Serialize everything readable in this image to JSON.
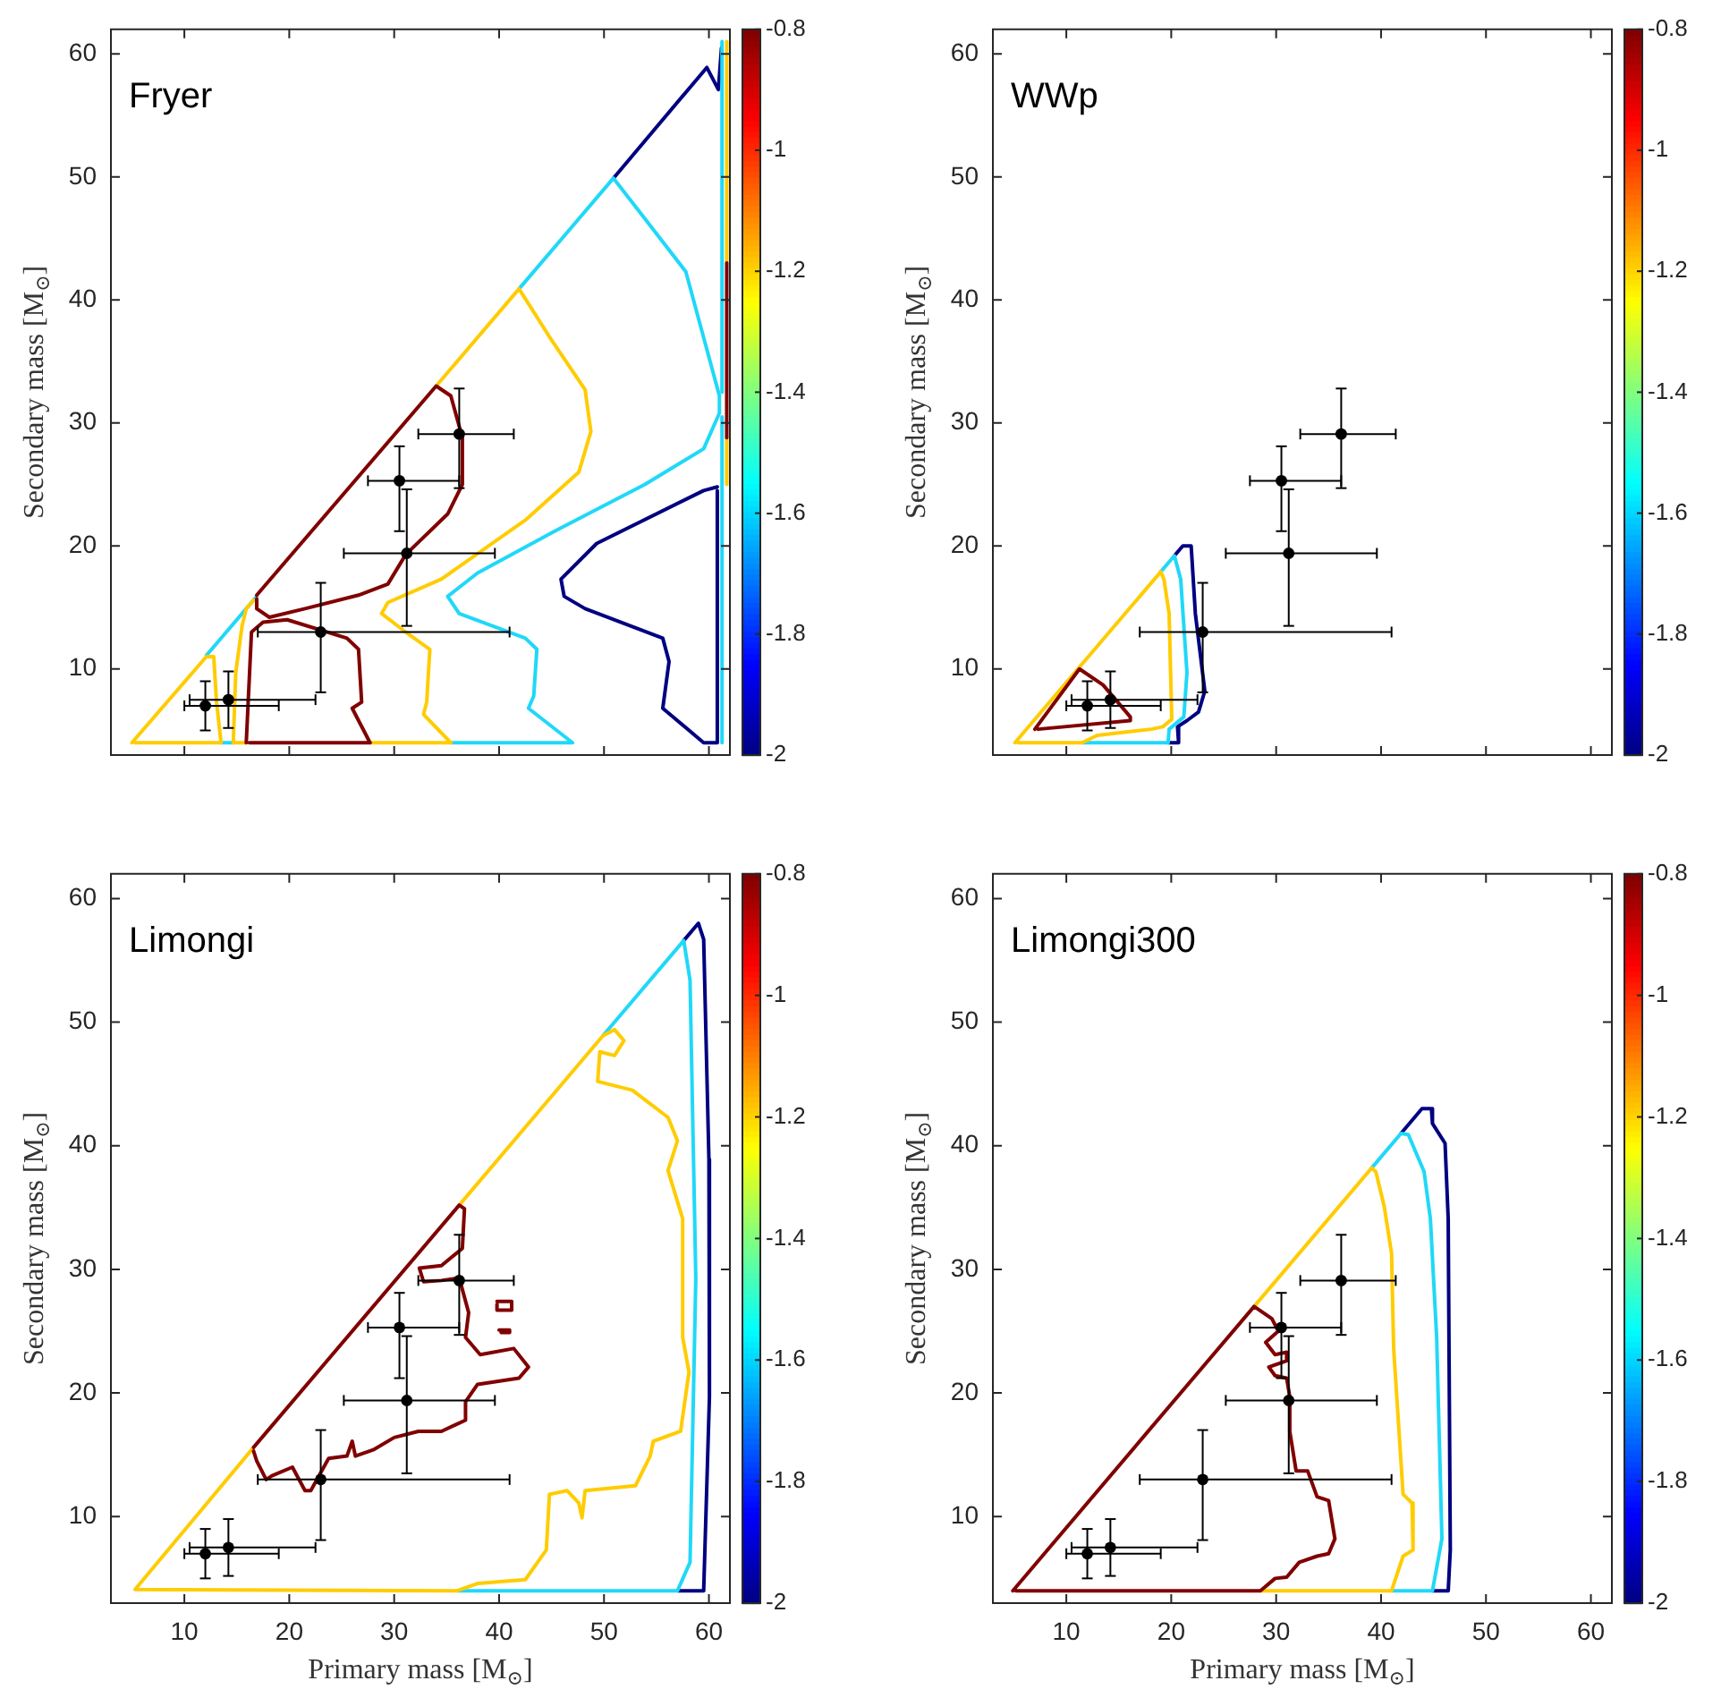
{
  "chart_data": [
    {
      "type": "line",
      "title": "Fryer",
      "ylabel": "Secondary mass [M$_{⊙}$]",
      "xlim": [
        3,
        62
      ],
      "ylim": [
        3,
        62
      ],
      "xticks": [
        10,
        20,
        30,
        40,
        50,
        60
      ],
      "yticks": [
        10,
        20,
        30,
        40,
        50,
        60
      ],
      "tick_labels": "y",
      "clim": [
        -2,
        -0.8
      ],
      "cticks": [
        -2,
        -1.8,
        -1.6,
        -1.4,
        -1.2,
        -1,
        -0.8
      ],
      "series": [
        {
          "color": "#000080",
          "x": [
            50.9,
            59.8,
            60.9,
            61.2
          ],
          "values": [
            49.9,
            58.9,
            57.1,
            60.5
          ]
        },
        {
          "color": "#000080",
          "x": [
            60.8,
            59.5,
            49.3,
            45.9,
            46.2,
            48.2,
            55.6,
            56.2,
            55.6,
            59.5,
            60.8,
            60.8
          ],
          "values": [
            24.8,
            24.5,
            20.2,
            17.3,
            15.9,
            14.9,
            12.5,
            10.6,
            6.8,
            4,
            4,
            24.5
          ]
        },
        {
          "color": "#20d8f8",
          "x": [
            13.5,
            14.66
          ],
          "values": [
            4,
            4
          ]
        },
        {
          "color": "#20d8f8",
          "x": [
            12.1,
            16.9
          ],
          "values": [
            11.1,
            15.9
          ]
        },
        {
          "color": "#20d8f8",
          "x": [
            41.9,
            50.9,
            53.9,
            57.8,
            61,
            61,
            59.5,
            53.9,
            45.3,
            37.95,
            35.1,
            36.2,
            42.5,
            43.6,
            43.3,
            42.8,
            47,
            35.4
          ],
          "values": [
            40.9,
            49.9,
            46.6,
            42.3,
            32.2,
            30.8,
            27.9,
            25,
            21.2,
            17.8,
            15.9,
            14.5,
            12.5,
            11.6,
            7.8,
            6.8,
            4,
            4
          ]
        },
        {
          "color": "#20d8f8",
          "x": [
            61.25,
            61.25
          ],
          "values": [
            61,
            32.5
          ]
        },
        {
          "color": "#20d8f8",
          "x": [
            61.25,
            61.25
          ],
          "values": [
            30.5,
            4
          ]
        },
        {
          "color": "#ffcc00",
          "x": [
            5,
            12.1,
            12.8,
            13.07,
            13.5,
            5.3
          ],
          "values": [
            4,
            11,
            11,
            7.3,
            4,
            4
          ]
        },
        {
          "color": "#ffcc00",
          "x": [
            15.9,
            14.66,
            14.9,
            15.5,
            15.9,
            16.6
          ],
          "values": [
            4,
            4,
            9.7,
            13.5,
            14.9,
            15.6
          ]
        },
        {
          "color": "#ffcc00",
          "x": [
            34,
            41.9,
            44.8,
            48.2,
            48.75,
            47.6,
            42.5,
            34.5,
            29.4,
            28.8,
            31.1,
            33.4,
            33.1,
            32.8,
            35.4,
            27.7
          ],
          "values": [
            33,
            40.9,
            37,
            32.7,
            29.3,
            26,
            22.1,
            17.3,
            15.4,
            14.5,
            13,
            11.6,
            7.3,
            6.3,
            4,
            4
          ]
        },
        {
          "color": "#ffcc00",
          "x": [
            61.7,
            61.7
          ],
          "values": [
            61,
            43
          ]
        },
        {
          "color": "#ffcc00",
          "x": [
            61.7,
            61.7
          ],
          "values": [
            28.8,
            25
          ]
        },
        {
          "color": "#800000",
          "x": [
            15.9,
            16.4,
            17.5,
            19.8,
            25.5,
            26.6,
            26.9,
            26,
            27.7,
            16.2
          ],
          "values": [
            4,
            13,
            13.8,
            14,
            12.5,
            11.6,
            7.3,
            6.8,
            4,
            4
          ]
        },
        {
          "color": "#800000",
          "x": [
            16.9,
            34,
            35.4,
            36.5,
            36.5,
            35.1,
            31.1,
            29.4,
            26.6,
            21.5,
            18.1,
            16.9,
            16.9
          ],
          "values": [
            16,
            33,
            32.2,
            28.8,
            25,
            22.6,
            19.3,
            16.9,
            16,
            14.9,
            14.2,
            14.9,
            15.7
          ]
        },
        {
          "color": "#800000",
          "x": [
            61.7,
            61.7
          ],
          "values": [
            43,
            28.8
          ]
        },
        {
          "type": "scatter",
          "marker": "circle",
          "color": "#000000",
          "x": [
            12,
            14.2,
            23,
            30.5,
            31.2,
            36.2
          ],
          "values": [
            7,
            7.5,
            13,
            25.3,
            19.4,
            29.1
          ],
          "errors": [
            [
              5,
              9
            ],
            [
              5.2,
              9.8
            ],
            [
              8.1,
              17
            ],
            [
              21.2,
              28.1
            ],
            [
              13.5,
              24.6
            ],
            [
              24.7,
              32.8
            ]
          ],
          "xerrors": [
            [
              10,
              19
            ],
            [
              10.5,
              22.5
            ],
            [
              17,
              41
            ],
            [
              27.5,
              36.2
            ],
            [
              25.2,
              39.6
            ],
            [
              32.3,
              41.4
            ]
          ]
        }
      ]
    },
    {
      "type": "line",
      "title": "WWp",
      "ylabel": "Secondary mass [M$_{⊙}$]",
      "xlim": [
        3,
        62
      ],
      "ylim": [
        3,
        62
      ],
      "xticks": [
        10,
        20,
        30,
        40,
        50,
        60
      ],
      "yticks": [
        10,
        20,
        30,
        40,
        50,
        60
      ],
      "tick_labels": "y",
      "clim": [
        -2,
        -0.8
      ],
      "cticks": [
        -2,
        -1.8,
        -1.6,
        -1.4,
        -1.2,
        -1,
        -0.8
      ],
      "series": [
        {
          "color": "#000080",
          "x": [
            20.3,
            21.1,
            21.9,
            22.3,
            23.2,
            22.6,
            21.5,
            20.6,
            20.7,
            19.7
          ],
          "values": [
            19.2,
            20,
            20,
            14.5,
            8.2,
            6.5,
            5.8,
            5.3,
            4,
            4
          ]
        },
        {
          "color": "#20d8f8",
          "x": [
            19,
            20.3,
            20.9,
            21.5,
            21.2,
            19.8,
            19.7,
            11.5
          ],
          "values": [
            17.9,
            19.2,
            17.3,
            9.7,
            6.1,
            5.1,
            4,
            4
          ]
        },
        {
          "color": "#ffcc00",
          "x": [
            5.1,
            19,
            19.3,
            19.8,
            20.05,
            19.2,
            18.1,
            12.95,
            11.5,
            5.4
          ],
          "values": [
            4,
            17.9,
            17.3,
            14.5,
            5.9,
            5.3,
            5.1,
            4.6,
            4,
            4
          ]
        },
        {
          "color": "#800000",
          "x": [
            7,
            11.25,
            13.5,
            16.1,
            16.1,
            7.3
          ],
          "values": [
            5.1,
            10,
            8.7,
            6.1,
            5.8,
            5.1
          ]
        },
        {
          "type": "scatter",
          "marker": "circle",
          "color": "#000000",
          "x": [
            12,
            14.2,
            23,
            30.5,
            31.2,
            36.2
          ],
          "values": [
            7,
            7.5,
            13,
            25.3,
            19.4,
            29.1
          ],
          "errors": [
            [
              5,
              9
            ],
            [
              5.2,
              9.8
            ],
            [
              8.1,
              17
            ],
            [
              21.2,
              28.1
            ],
            [
              13.5,
              24.6
            ],
            [
              24.7,
              32.8
            ]
          ],
          "xerrors": [
            [
              10,
              19
            ],
            [
              10.5,
              22.5
            ],
            [
              17,
              41
            ],
            [
              27.5,
              36.2
            ],
            [
              25.2,
              39.6
            ],
            [
              32.3,
              41.4
            ]
          ]
        }
      ]
    },
    {
      "type": "line",
      "title": "Limongi",
      "xlabel": "Primary mass [M$_{⊙}$]",
      "ylabel": "Secondary mass [M$_{⊙}$]",
      "xlim": [
        3,
        62
      ],
      "ylim": [
        3,
        62
      ],
      "xticks": [
        10,
        20,
        30,
        40,
        50,
        60
      ],
      "yticks": [
        10,
        20,
        30,
        40,
        50,
        60
      ],
      "clim": [
        -2,
        -0.8
      ],
      "cticks": [
        -2,
        -1.8,
        -1.6,
        -1.4,
        -1.2,
        -1,
        -0.8
      ],
      "series": [
        {
          "color": "#000080",
          "x": [
            57.6,
            59,
            59.5,
            60,
            60.05,
            59.5,
            57
          ],
          "values": [
            56.6,
            58,
            56.7,
            38.9,
            19.7,
            4,
            4
          ]
        },
        {
          "color": "#20d8f8",
          "x": [
            49.9,
            57.6,
            58.2,
            58.75,
            58.2,
            57,
            36
          ],
          "values": [
            48.9,
            56.6,
            53.4,
            29.3,
            6.3,
            4,
            4
          ]
        },
        {
          "color": "#ffcc00",
          "x": [
            16.6,
            5.3,
            36,
            38,
            42.5,
            44.5,
            44.8,
            46.5,
            47.6,
            47.9,
            48.2,
            53,
            54.4,
            54.7,
            57.3,
            58.1,
            57.5,
            57.5,
            56.1,
            57,
            56.1,
            52.7,
            49.4,
            49.6,
            51,
            51.9,
            51,
            49.9,
            36.2
          ],
          "values": [
            15.6,
            4.1,
            4,
            4.6,
            4.9,
            7.3,
            11.8,
            12.1,
            11.1,
            9.9,
            12.1,
            12.5,
            14.9,
            16.1,
            16.9,
            21.7,
            24.5,
            34.1,
            38,
            40.4,
            42.3,
            44.5,
            45.2,
            47.6,
            47.3,
            48.5,
            49.4,
            48.9,
            35.2
          ]
        },
        {
          "color": "#800000",
          "x": [
            16.6,
            36.2,
            36.7,
            36.5,
            34.5,
            32.4,
            32.8,
            34.5,
            36.2,
            37.1,
            36.8,
            38.2,
            41.4,
            42.8,
            41.9,
            37.95,
            36.8,
            36.8,
            34.5,
            32.3,
            30,
            28,
            26.3,
            26,
            25.5,
            23.75,
            22.05,
            21.5,
            20.3,
            18.35,
            17.8,
            16.9,
            16.6
          ],
          "values": [
            15.6,
            35.2,
            34.9,
            31.7,
            30.3,
            30.1,
            29,
            29.1,
            29.3,
            26.5,
            24.5,
            23.1,
            23.6,
            22.1,
            21.2,
            20.7,
            19.3,
            17.8,
            16.9,
            16.9,
            16.4,
            15.4,
            14.9,
            16.1,
            14.9,
            14.7,
            12.1,
            12.1,
            14,
            13.3,
            13,
            14.5,
            15.3
          ]
        },
        {
          "color": "#800000",
          "x": [
            39.8,
            41.2,
            41.2,
            39.8,
            39.8
          ],
          "values": [
            27.4,
            27.4,
            26.7,
            26.7,
            27.2
          ]
        },
        {
          "color": "#800000",
          "x": [
            40,
            41,
            41,
            40.2
          ],
          "values": [
            25.1,
            25.1,
            24.9,
            24.9
          ]
        },
        {
          "type": "scatter",
          "marker": "circle",
          "color": "#000000",
          "x": [
            12,
            14.2,
            23,
            30.5,
            31.2,
            36.2
          ],
          "values": [
            7,
            7.5,
            13,
            25.3,
            19.4,
            29.1
          ],
          "errors": [
            [
              5,
              9
            ],
            [
              5.2,
              9.8
            ],
            [
              8.1,
              17
            ],
            [
              21.2,
              28.1
            ],
            [
              13.5,
              24.6
            ],
            [
              24.7,
              32.8
            ]
          ],
          "xerrors": [
            [
              10,
              19
            ],
            [
              10.5,
              22.5
            ],
            [
              17,
              41
            ],
            [
              27.5,
              36.2
            ],
            [
              25.2,
              39.6
            ],
            [
              32.3,
              41.4
            ]
          ]
        }
      ]
    },
    {
      "type": "line",
      "title": "Limongi300",
      "xlabel": "Primary mass [M$_{⊙}$]",
      "ylabel": "Secondary mass [M$_{⊙}$]",
      "xlim": [
        3,
        62
      ],
      "ylim": [
        3,
        62
      ],
      "xticks": [
        10,
        20,
        30,
        40,
        50,
        60
      ],
      "yticks": [
        10,
        20,
        30,
        40,
        50,
        60
      ],
      "clim": [
        -2,
        -0.8
      ],
      "cticks": [
        -2,
        -1.8,
        -1.6,
        -1.4,
        -1.2,
        -1,
        -0.8
      ],
      "series": [
        {
          "color": "#000080",
          "x": [
            41.9,
            43.9,
            44.8,
            44.9,
            46.1,
            46.4,
            46.6,
            46.4,
            44.9
          ],
          "values": [
            41,
            43,
            43,
            41.8,
            40.2,
            34.1,
            7.3,
            4,
            4
          ]
        },
        {
          "color": "#20d8f8",
          "x": [
            39.1,
            41.9,
            42.6,
            44.1,
            44.7,
            45.3,
            45.8,
            44.9,
            41
          ],
          "values": [
            38.2,
            41,
            40.9,
            37.9,
            34.1,
            24.5,
            8.2,
            4,
            4
          ]
        },
        {
          "color": "#ffcc00",
          "x": [
            27.9,
            39.1,
            39.5,
            40.3,
            41,
            41.2,
            42.1,
            42.95,
            43.05,
            42.1,
            41,
            28.5
          ],
          "values": [
            27,
            38.2,
            37.9,
            35.1,
            31.3,
            23.6,
            11.8,
            11.1,
            7.3,
            6.8,
            4,
            4
          ]
        },
        {
          "color": "#800000",
          "x": [
            4.9,
            27.9,
            29.6,
            30.2,
            29,
            29.9,
            31,
            31,
            29.3,
            29.9,
            31,
            31.3,
            31.3,
            31.9,
            33,
            33.9,
            35,
            35.6,
            35,
            33.9,
            32.2,
            31,
            29.9,
            28.5,
            5.2
          ],
          "values": [
            4,
            27,
            26,
            25,
            24.1,
            23.1,
            23.3,
            22.6,
            22.1,
            21.4,
            21.2,
            19.7,
            16.9,
            13.7,
            13.7,
            11.6,
            11.3,
            8.2,
            7,
            6.8,
            6.3,
            5.1,
            5,
            4,
            4
          ]
        },
        {
          "type": "scatter",
          "marker": "circle",
          "color": "#000000",
          "x": [
            12,
            14.2,
            23,
            30.5,
            31.2,
            36.2
          ],
          "values": [
            7,
            7.5,
            13,
            25.3,
            19.4,
            29.1
          ],
          "errors": [
            [
              5,
              9
            ],
            [
              5.2,
              9.8
            ],
            [
              8.1,
              17
            ],
            [
              21.2,
              28.1
            ],
            [
              13.5,
              24.6
            ],
            [
              24.7,
              32.8
            ]
          ],
          "xerrors": [
            [
              10,
              19
            ],
            [
              10.5,
              22.5
            ],
            [
              17,
              41
            ],
            [
              27.5,
              36.2
            ],
            [
              25.2,
              39.6
            ],
            [
              32.3,
              41.4
            ]
          ]
        }
      ]
    }
  ]
}
